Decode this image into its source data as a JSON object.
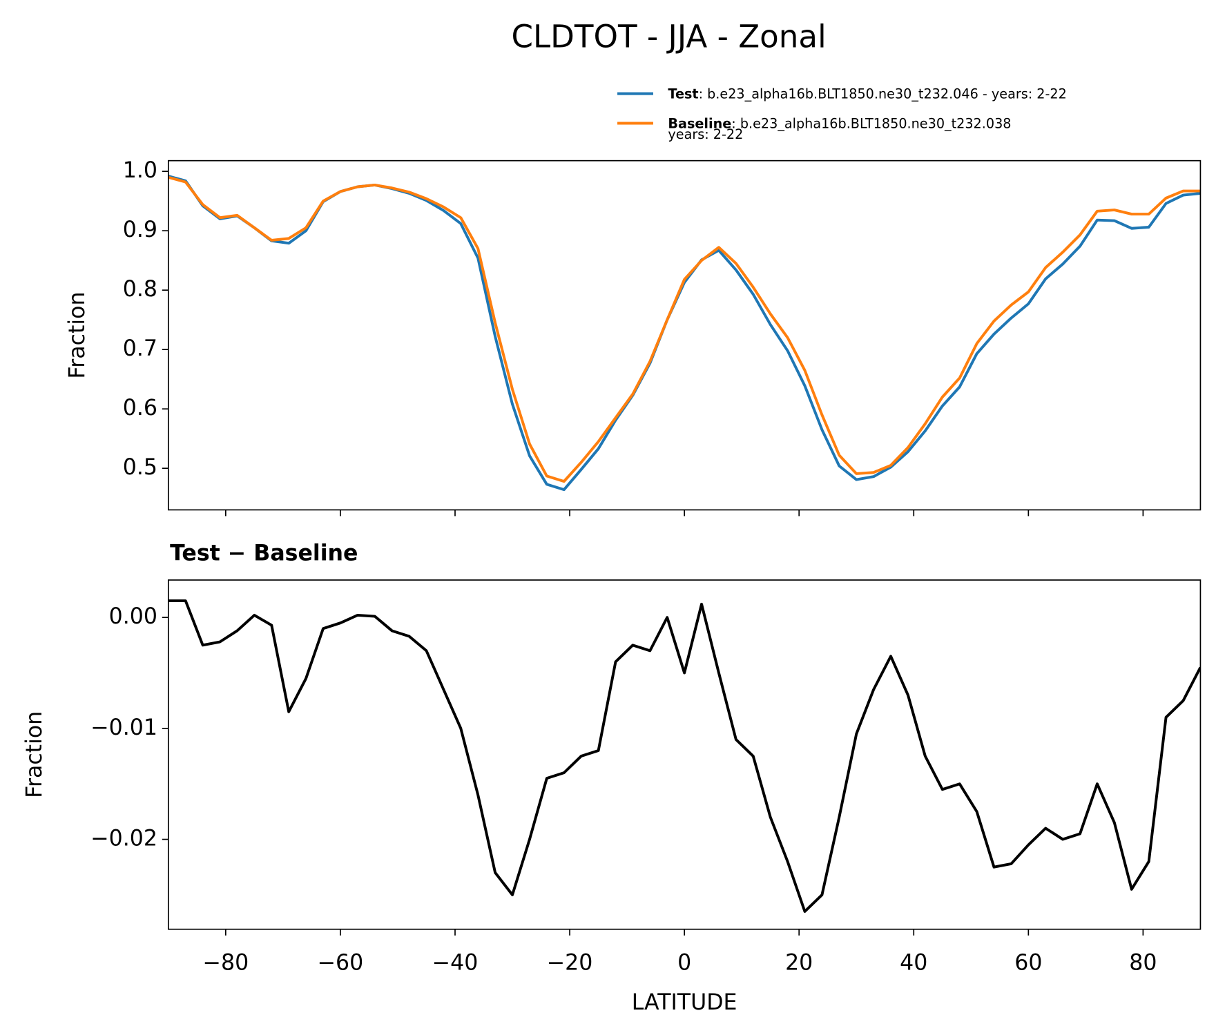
{
  "chart_data": [
    {
      "type": "line",
      "title": "CLDTOT - JJA - Zonal",
      "ylabel": "Fraction",
      "x": [
        -90,
        -87,
        -84,
        -81,
        -78,
        -75,
        -72,
        -69,
        -66,
        -63,
        -60,
        -57,
        -54,
        -51,
        -48,
        -45,
        -42,
        -39,
        -36,
        -33,
        -30,
        -27,
        -24,
        -21,
        -18,
        -15,
        -12,
        -9,
        -6,
        -3,
        0,
        3,
        6,
        9,
        12,
        15,
        18,
        21,
        24,
        27,
        30,
        33,
        36,
        39,
        42,
        45,
        48,
        51,
        54,
        57,
        60,
        63,
        66,
        69,
        72,
        75,
        78,
        81,
        84,
        87,
        90
      ],
      "series": [
        {
          "name": "Test",
          "color": "#1f77b4",
          "description_lines": [
            ": b.e23_alpha16b.BLT1850.ne30_t232.046 - years: 2-22"
          ],
          "values": [
            0.992,
            0.984,
            0.942,
            0.92,
            0.925,
            0.905,
            0.883,
            0.879,
            0.9,
            0.949,
            0.966,
            0.974,
            0.977,
            0.971,
            0.963,
            0.951,
            0.934,
            0.912,
            0.854,
            0.722,
            0.608,
            0.521,
            0.473,
            0.464,
            0.498,
            0.533,
            0.581,
            0.623,
            0.677,
            0.75,
            0.813,
            0.851,
            0.867,
            0.834,
            0.793,
            0.742,
            0.698,
            0.639,
            0.565,
            0.504,
            0.481,
            0.486,
            0.502,
            0.528,
            0.563,
            0.605,
            0.637,
            0.693,
            0.726,
            0.753,
            0.777,
            0.819,
            0.844,
            0.874,
            0.918,
            0.917,
            0.904,
            0.906,
            0.946,
            0.96,
            0.963
          ]
        },
        {
          "name": "Baseline",
          "color": "#ff7f0e",
          "description_lines": [
            ": b.e23_alpha16b.BLT1850.ne30_t232.038",
            "years: 2-22"
          ],
          "values": [
            0.99,
            0.982,
            0.944,
            0.922,
            0.926,
            0.905,
            0.884,
            0.887,
            0.905,
            0.95,
            0.966,
            0.974,
            0.977,
            0.972,
            0.965,
            0.954,
            0.94,
            0.922,
            0.87,
            0.745,
            0.633,
            0.541,
            0.487,
            0.478,
            0.51,
            0.545,
            0.585,
            0.625,
            0.68,
            0.75,
            0.818,
            0.85,
            0.872,
            0.845,
            0.805,
            0.76,
            0.72,
            0.665,
            0.59,
            0.522,
            0.491,
            0.493,
            0.505,
            0.535,
            0.575,
            0.62,
            0.652,
            0.71,
            0.748,
            0.775,
            0.797,
            0.838,
            0.864,
            0.893,
            0.933,
            0.935,
            0.928,
            0.928,
            0.955,
            0.967,
            0.967
          ]
        }
      ],
      "xlim": [
        -90,
        90
      ],
      "ylim": [
        0.43,
        1.018
      ],
      "xticks": [
        -80,
        -60,
        -40,
        -20,
        0,
        20,
        40,
        60,
        80
      ],
      "yticks": [
        0.5,
        0.6,
        0.7,
        0.8,
        0.9,
        {
          "value": 1.0,
          "label": "1.0"
        }
      ],
      "legend": "upper right"
    },
    {
      "type": "line",
      "title": "Test − Baseline",
      "xlabel": "LATITUDE",
      "ylabel": "Fraction",
      "x": [
        -90,
        -87,
        -84,
        -81,
        -78,
        -75,
        -72,
        -69,
        -66,
        -63,
        -60,
        -57,
        -54,
        -51,
        -48,
        -45,
        -42,
        -39,
        -36,
        -33,
        -30,
        -27,
        -24,
        -21,
        -18,
        -15,
        -12,
        -9,
        -6,
        -3,
        0,
        3,
        6,
        9,
        12,
        15,
        18,
        21,
        24,
        27,
        30,
        33,
        36,
        39,
        42,
        45,
        48,
        51,
        54,
        57,
        60,
        63,
        66,
        69,
        72,
        75,
        78,
        81,
        84,
        87,
        90
      ],
      "series": [
        {
          "color": "#000000",
          "values": [
            0.0015,
            0.0015,
            -0.0025,
            -0.0022,
            -0.0012,
            0.0002,
            -0.0007,
            -0.0085,
            -0.0055,
            -0.001,
            -0.0005,
            0.0002,
            0.0001,
            -0.0012,
            -0.0017,
            -0.003,
            -0.0065,
            -0.01,
            -0.016,
            -0.023,
            -0.025,
            -0.02,
            -0.0145,
            -0.014,
            -0.0125,
            -0.012,
            -0.004,
            -0.0025,
            -0.003,
            0.0,
            -0.005,
            0.0012,
            -0.005,
            -0.011,
            -0.0125,
            -0.018,
            -0.022,
            -0.0265,
            -0.025,
            -0.018,
            -0.0105,
            -0.0065,
            -0.0035,
            -0.007,
            -0.0125,
            -0.0155,
            -0.015,
            -0.0175,
            -0.0225,
            -0.0222,
            -0.0205,
            -0.019,
            -0.02,
            -0.0195,
            -0.015,
            -0.0185,
            -0.0245,
            -0.022,
            -0.009,
            -0.0075,
            -0.0045
          ]
        }
      ],
      "xlim": [
        -90,
        90
      ],
      "ylim": [
        -0.0281,
        0.00337
      ],
      "xticks": [
        {
          "value": -80,
          "label": "−80"
        },
        {
          "value": -60,
          "label": "−60"
        },
        {
          "value": -40,
          "label": "−40"
        },
        {
          "value": -20,
          "label": "−20"
        },
        0,
        20,
        40,
        60,
        80
      ],
      "yticks": [
        {
          "value": -0.02,
          "label": "−0.02"
        },
        {
          "value": -0.01,
          "label": "−0.01"
        },
        {
          "value": 0,
          "label": "0.00"
        }
      ]
    }
  ]
}
